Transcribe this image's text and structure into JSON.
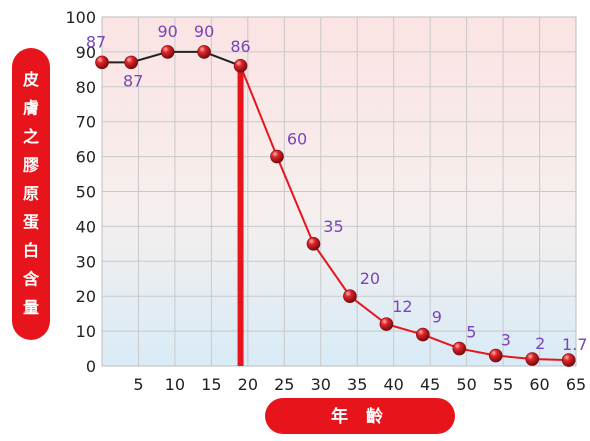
{
  "chart_data": {
    "type": "line",
    "title": "",
    "xlabel": "年 齡",
    "ylabel": "皮膚之膠原蛋白含量",
    "ylim": [
      0,
      100
    ],
    "xlim": [
      0,
      65
    ],
    "y_ticks": [
      "0",
      "10",
      "20",
      "30",
      "40",
      "50",
      "60",
      "70",
      "80",
      "90",
      "100"
    ],
    "x_ticks": [
      "5",
      "10",
      "15",
      "20",
      "25",
      "30",
      "35",
      "40",
      "45",
      "50",
      "55",
      "60",
      "65"
    ],
    "grid": true,
    "series": [
      {
        "x": [
          0,
          4,
          9,
          14,
          19,
          24,
          29,
          34,
          39,
          44,
          49,
          54,
          59,
          64
        ],
        "values": [
          87,
          87,
          90,
          90,
          86,
          60,
          35,
          20,
          12,
          9,
          5,
          3,
          2,
          1.7
        ],
        "labels": [
          "87",
          "87",
          "90",
          "90",
          "86",
          "60",
          "35",
          "20",
          "12",
          "9",
          "5",
          "3",
          "2",
          "1.7"
        ]
      }
    ],
    "marker_line_x": 19,
    "colors": {
      "line_young": "#222222",
      "line_old": "#e8141c",
      "marker": "#d4161c",
      "marker_line": "#e8141c",
      "pill": "#e8141c",
      "label": "#7a45b8",
      "bg_top": "#fbe3e3",
      "bg_bottom": "#d8ebf7",
      "grid": "#c9c9c9"
    }
  }
}
